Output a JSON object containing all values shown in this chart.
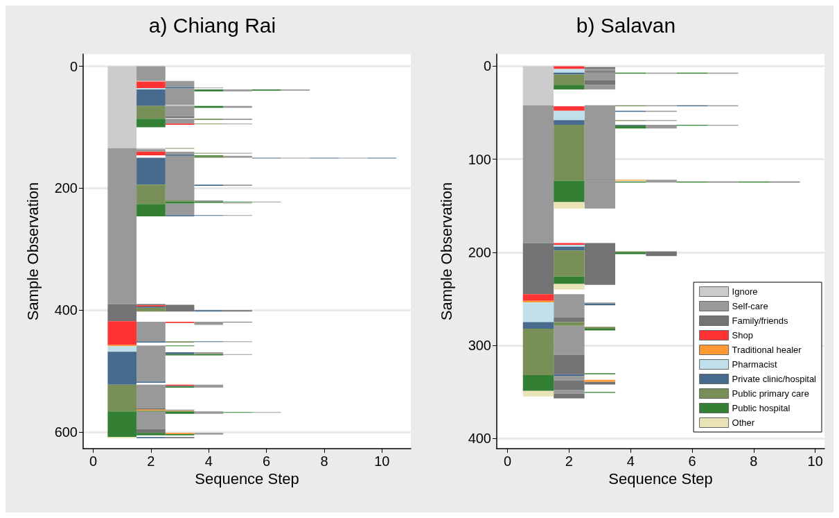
{
  "chart_data": [
    {
      "type": "bar",
      "title": "a) Chiang Rai",
      "xlabel": "Sequence Step",
      "ylabel": "Sample Observation",
      "xlim": [
        -0.35,
        11
      ],
      "xticks": [
        0,
        2,
        4,
        6,
        8,
        10
      ],
      "ylim": [
        627,
        -20
      ],
      "yticks": [
        0,
        200,
        400,
        600
      ],
      "grid": "y",
      "legend": false,
      "series": [
        {
          "color": "#cccccc",
          "x": [
            1,
            2,
            3
          ],
          "base": [
            0,
            134,
            63
          ],
          "values": [
            134,
            2,
            2
          ]
        },
        {
          "color": "#999999",
          "x": [
            1,
            2,
            3,
            4,
            5,
            6,
            7,
            9
          ],
          "base": [
            134,
            0,
            24,
            35,
            38,
            222,
            38,
            150
          ],
          "values": [
            256,
            24,
            10,
            1,
            3,
            1,
            2,
            1
          ]
        },
        {
          "color": "#999999",
          "x": [
            2,
            3,
            4,
            5,
            6,
            7
          ],
          "base": [
            136,
            36,
            220,
            65,
            567,
            150
          ],
          "values": [
            4,
            27,
            2,
            3,
            1,
            1
          ]
        },
        {
          "color": "#999999",
          "x": [
            2,
            3,
            4,
            5
          ],
          "base": [
            419,
            65,
            419,
            86
          ],
          "values": [
            32,
            17,
            5,
            2
          ]
        },
        {
          "color": "#999999",
          "x": [
            2,
            3,
            4,
            5
          ],
          "base": [
            458,
            86,
            469,
            94
          ],
          "values": [
            59,
            8,
            3,
            1
          ]
        },
        {
          "color": "#999999",
          "x": [
            2,
            3,
            4,
            5
          ],
          "base": [
            522,
            140,
            522,
            142
          ],
          "values": [
            39,
            5,
            5,
            1
          ]
        },
        {
          "color": "#999999",
          "x": [
            2,
            3,
            4,
            5
          ],
          "base": [
            566,
            147,
            566,
            147
          ],
          "values": [
            29,
            73,
            4,
            3
          ]
        },
        {
          "color": "#999999",
          "x": [
            3,
            4,
            5
          ],
          "base": [
            225,
            601,
            194
          ],
          "values": [
            19,
            3,
            2
          ]
        },
        {
          "color": "#999999",
          "x": [
            3,
            5
          ],
          "base": [
            563,
            224
          ],
          "values": [
            2,
            1
          ]
        },
        {
          "color": "#999999",
          "x": [
            5
          ],
          "base": [
            244
          ],
          "values": [
            1
          ]
        },
        {
          "color": "#999999",
          "x": [
            5
          ],
          "base": [
            451
          ],
          "values": [
            1
          ]
        },
        {
          "color": "#999999",
          "x": [
            5
          ],
          "base": [
            472
          ],
          "values": [
            1
          ]
        },
        {
          "color": "#737373",
          "x": [
            1,
            2,
            3,
            5
          ],
          "base": [
            390,
            390,
            82,
            400
          ],
          "values": [
            28,
            2,
            3,
            2
          ]
        },
        {
          "color": "#737373",
          "x": [
            2,
            3,
            5
          ],
          "base": [
            561,
            391,
            419
          ],
          "values": [
            2,
            11,
            1
          ]
        },
        {
          "color": "#737373",
          "x": [
            2,
            3
          ],
          "base": [
            595,
            608
          ],
          "values": [
            6,
            2
          ]
        },
        {
          "color": "#ff3333",
          "x": [
            1,
            2,
            3
          ],
          "base": [
            418,
            25,
            94
          ],
          "values": [
            39,
            11,
            2
          ]
        },
        {
          "color": "#ff3333",
          "x": [
            2,
            3
          ],
          "base": [
            140,
            419
          ],
          "values": [
            6,
            2
          ]
        },
        {
          "color": "#ff3333",
          "x": [
            2,
            3
          ],
          "base": [
            392,
            522
          ],
          "values": [
            2,
            2
          ]
        },
        {
          "color": "#ff9933",
          "x": [
            1,
            2,
            3
          ],
          "base": [
            457,
            563,
            565
          ],
          "values": [
            2,
            2,
            1
          ]
        },
        {
          "color": "#ff9933",
          "x": [
            3
          ],
          "base": [
            601
          ],
          "values": [
            2
          ]
        },
        {
          "color": "#bfe0ea",
          "x": [
            1,
            2
          ],
          "base": [
            459,
            36
          ],
          "values": [
            9,
            2
          ]
        },
        {
          "color": "#476b8c",
          "x": [
            1,
            2,
            3,
            4,
            6,
            8,
            10
          ],
          "base": [
            468,
            38,
            34,
            194,
            150,
            150,
            150
          ],
          "values": [
            54,
            27,
            2,
            2,
            1,
            1,
            1
          ]
        },
        {
          "color": "#476b8c",
          "x": [
            2,
            3,
            4
          ],
          "base": [
            150,
            145,
            244
          ],
          "values": [
            44,
            2,
            1
          ]
        },
        {
          "color": "#476b8c",
          "x": [
            2,
            3,
            4
          ],
          "base": [
            394,
            244,
            400
          ],
          "values": [
            2,
            2,
            2
          ]
        },
        {
          "color": "#476b8c",
          "x": [
            2,
            3,
            4
          ],
          "base": [
            451,
            469,
            451
          ],
          "values": [
            2,
            3,
            1
          ]
        },
        {
          "color": "#476b8c",
          "x": [
            2,
            3
          ],
          "base": [
            517,
            524
          ],
          "values": [
            2,
            1
          ]
        },
        {
          "color": "#476b8c",
          "x": [
            2
          ],
          "base": [
            608
          ],
          "values": [
            2
          ]
        },
        {
          "color": "#788f57",
          "x": [
            1,
            2,
            3,
            4
          ],
          "base": [
            522,
            65,
            134,
            86
          ],
          "values": [
            44,
            21,
            1,
            2
          ]
        },
        {
          "color": "#788f57",
          "x": [
            2,
            3,
            4
          ],
          "base": [
            194,
            220,
            94
          ],
          "values": [
            32,
            2,
            1
          ]
        },
        {
          "color": "#788f57",
          "x": [
            2,
            3,
            4
          ],
          "base": [
            396,
            451,
            142
          ],
          "values": [
            6,
            2,
            1
          ]
        },
        {
          "color": "#788f57",
          "x": [
            4
          ],
          "base": [
            147
          ],
          "values": [
            3
          ]
        },
        {
          "color": "#337f33",
          "x": [
            1,
            2,
            3,
            4,
            5,
            6
          ],
          "base": [
            566,
            86,
            222,
            38,
            222,
            38
          ],
          "values": [
            42,
            14,
            3,
            3,
            1,
            2
          ]
        },
        {
          "color": "#337f33",
          "x": [
            2,
            3,
            4,
            5
          ],
          "base": [
            226,
            458,
            65,
            567
          ],
          "values": [
            20,
            1,
            3,
            1
          ]
        },
        {
          "color": "#337f33",
          "x": [
            2,
            3,
            4
          ],
          "base": [
            565,
            472,
            146
          ],
          "values": [
            1,
            2,
            1
          ]
        },
        {
          "color": "#337f33",
          "x": [
            2,
            3,
            4
          ],
          "base": [
            601,
            525,
            222
          ],
          "values": [
            4,
            2,
            2
          ]
        },
        {
          "color": "#337f33",
          "x": [
            3,
            4
          ],
          "base": [
            566,
            472
          ],
          "values": [
            4,
            2
          ]
        },
        {
          "color": "#337f33",
          "x": [
            3
          ],
          "base": [
            603
          ],
          "values": [
            2
          ]
        },
        {
          "color": "#ebe3b8",
          "x": [
            1
          ],
          "base": [
            608
          ],
          "values": [
            2
          ]
        }
      ]
    },
    {
      "type": "bar",
      "title": "b) Salavan",
      "xlabel": "Sequence Step",
      "ylabel": "Sample Observation",
      "xlim": [
        -0.35,
        10.3
      ],
      "xticks": [
        0,
        2,
        4,
        6,
        8,
        10
      ],
      "ylim": [
        411,
        -13
      ],
      "yticks": [
        0,
        100,
        200,
        300,
        400
      ],
      "grid": "y",
      "legend": "bottom right",
      "series": [
        {
          "name": "Ignore",
          "color": "#cccccc",
          "x": [
            1
          ],
          "base": [
            0
          ],
          "values": [
            42
          ]
        },
        {
          "name": "Self-care",
          "color": "#999999",
          "x": [
            1,
            2,
            3,
            5,
            7
          ],
          "base": [
            42,
            245,
            3,
            7,
            7
          ],
          "values": [
            148,
            25,
            2,
            1,
            1
          ]
        },
        {
          "color": "#999999",
          "x": [
            2,
            3,
            5,
            7
          ],
          "base": [
            279,
            7,
            42,
            42
          ],
          "values": [
            31,
            8,
            1,
            1
          ]
        },
        {
          "color": "#999999",
          "x": [
            2,
            3,
            5,
            7
          ],
          "base": [
            333,
            20,
            48,
            63
          ],
          "values": [
            5,
            5,
            1,
            1
          ]
        },
        {
          "color": "#999999",
          "x": [
            2,
            3,
            5
          ],
          "base": [
            348,
            42,
            58
          ],
          "values": [
            4,
            80,
            1
          ]
        },
        {
          "color": "#999999",
          "x": [
            3,
            5
          ],
          "base": [
            123,
            63
          ],
          "values": [
            30,
            4
          ]
        },
        {
          "color": "#999999",
          "x": [
            3,
            5
          ],
          "base": [
            254,
            122
          ],
          "values": [
            1,
            3
          ]
        },
        {
          "name": "Family/friends",
          "color": "#737373",
          "x": [
            1,
            2,
            3,
            5,
            7,
            9
          ],
          "base": [
            190,
            270,
            1,
            199,
            124,
            124
          ],
          "values": [
            55,
            5,
            2,
            5,
            1,
            1
          ]
        },
        {
          "color": "#737373",
          "x": [
            2,
            3
          ],
          "base": [
            310,
            5
          ],
          "values": [
            21,
            2
          ]
        },
        {
          "color": "#737373",
          "x": [
            2,
            3
          ],
          "base": [
            338,
            15
          ],
          "values": [
            10,
            5
          ]
        },
        {
          "color": "#737373",
          "x": [
            2,
            3
          ],
          "base": [
            352,
            122
          ],
          "values": [
            5,
            1
          ]
        },
        {
          "color": "#737373",
          "x": [
            3
          ],
          "base": [
            190
          ],
          "values": [
            45
          ]
        },
        {
          "color": "#737373",
          "x": [
            3
          ],
          "base": [
            339
          ],
          "values": [
            3
          ]
        },
        {
          "name": "Shop",
          "color": "#ff3333",
          "x": [
            1,
            2
          ],
          "base": [
            245,
            0
          ],
          "values": [
            7,
            3
          ]
        },
        {
          "color": "#ff3333",
          "x": [
            2
          ],
          "base": [
            43
          ],
          "values": [
            5
          ]
        },
        {
          "color": "#ff3333",
          "x": [
            2
          ],
          "base": [
            190
          ],
          "values": [
            2
          ]
        },
        {
          "name": "Traditional healer",
          "color": "#ff9933",
          "x": [
            1,
            3,
            4
          ],
          "base": [
            252,
            337,
            122
          ],
          "values": [
            2,
            2,
            1
          ]
        },
        {
          "name": "Pharmacist",
          "color": "#bfe0ea",
          "x": [
            1,
            2
          ],
          "base": [
            254,
            3
          ],
          "values": [
            21,
            4
          ]
        },
        {
          "color": "#bfe0ea",
          "x": [
            2
          ],
          "base": [
            48
          ],
          "values": [
            10
          ]
        },
        {
          "color": "#bfe0ea",
          "x": [
            2
          ],
          "base": [
            192
          ],
          "values": [
            2
          ]
        },
        {
          "name": "Private clinic/hospital",
          "color": "#476b8c",
          "x": [
            1,
            2,
            3,
            4,
            6
          ],
          "base": [
            275,
            7,
            255,
            48,
            42
          ],
          "values": [
            7,
            2,
            2,
            1,
            1
          ]
        },
        {
          "color": "#476b8c",
          "x": [
            2,
            4
          ],
          "base": [
            58,
            63
          ],
          "values": [
            5,
            1
          ]
        },
        {
          "color": "#476b8c",
          "x": [
            2
          ],
          "base": [
            194
          ],
          "values": [
            4
          ]
        },
        {
          "color": "#476b8c",
          "x": [
            2
          ],
          "base": [
            331
          ],
          "values": [
            2
          ]
        },
        {
          "name": "Public primary care",
          "color": "#788f57",
          "x": [
            1,
            2,
            3,
            4
          ],
          "base": [
            282,
            9,
            280,
            42
          ],
          "values": [
            50,
            11,
            2,
            1
          ]
        },
        {
          "color": "#788f57",
          "x": [
            2,
            4
          ],
          "base": [
            63,
            58
          ],
          "values": [
            60,
            1
          ]
        },
        {
          "color": "#788f57",
          "x": [
            2,
            4
          ],
          "base": [
            198,
            199
          ],
          "values": [
            28,
            1
          ]
        },
        {
          "color": "#788f57",
          "x": [
            2
          ],
          "base": [
            275
          ],
          "values": [
            4
          ]
        },
        {
          "name": "Public hospital",
          "color": "#337f33",
          "x": [
            1,
            2,
            3,
            4,
            6,
            8
          ],
          "base": [
            332,
            20,
            282,
            7,
            7,
            124
          ],
          "values": [
            17,
            5,
            2,
            1,
            1,
            1
          ]
        },
        {
          "color": "#337f33",
          "x": [
            2,
            3,
            4,
            6
          ],
          "base": [
            123,
            330,
            64,
            63
          ],
          "values": [
            23,
            1,
            3,
            1
          ]
        },
        {
          "color": "#337f33",
          "x": [
            2,
            3,
            4,
            6
          ],
          "base": [
            226,
            350,
            124,
            124
          ],
          "values": [
            8,
            1,
            1,
            1
          ]
        },
        {
          "color": "#337f33",
          "x": [
            4
          ],
          "base": [
            200
          ],
          "values": [
            2
          ]
        },
        {
          "name": "Other",
          "color": "#ebe3b8",
          "x": [
            1,
            2
          ],
          "base": [
            349,
            146
          ],
          "values": [
            6,
            7
          ]
        },
        {
          "color": "#ebe3b8",
          "x": [
            2
          ],
          "base": [
            234
          ],
          "values": [
            6
          ]
        }
      ]
    }
  ]
}
